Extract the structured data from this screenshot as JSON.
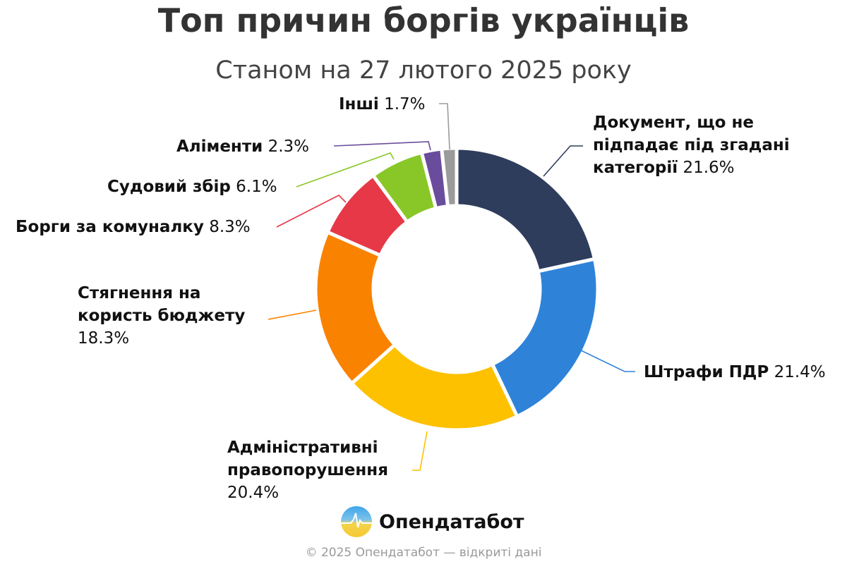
{
  "chart_data": {
    "type": "pie",
    "title": "Топ причин боргів українців",
    "subtitle": "Станом на 27 лютого 2025 року",
    "donut": true,
    "unit": "%",
    "slices": [
      {
        "label": "Документ, що не підпадає під згадані категорії",
        "value": 21.6,
        "display": "21.6%",
        "color": "#2e3d5c"
      },
      {
        "label": "Штрафи ПДР",
        "value": 21.4,
        "display": "21.4%",
        "color": "#2e83d9"
      },
      {
        "label": "Адміністративні правопорушення",
        "value": 20.4,
        "display": "20.4%",
        "color": "#fdc100"
      },
      {
        "label": "Стягнення на користь бюджету",
        "value": 18.3,
        "display": "18.3%",
        "color": "#f98200"
      },
      {
        "label": "Борги за комуналку",
        "value": 8.3,
        "display": "8.3%",
        "color": "#e63846"
      },
      {
        "label": "Судовий збір",
        "value": 6.1,
        "display": "6.1%",
        "color": "#89c728"
      },
      {
        "label": "Аліменти",
        "value": 2.3,
        "display": "2.3%",
        "color": "#6a4c9c"
      },
      {
        "label": "Інші",
        "value": 1.7,
        "display": "1.7%",
        "color": "#9b9b9b"
      }
    ]
  },
  "branding": {
    "name": "Опендатабот",
    "footer": "© 2025 Опендатабот — відкриті дані"
  }
}
